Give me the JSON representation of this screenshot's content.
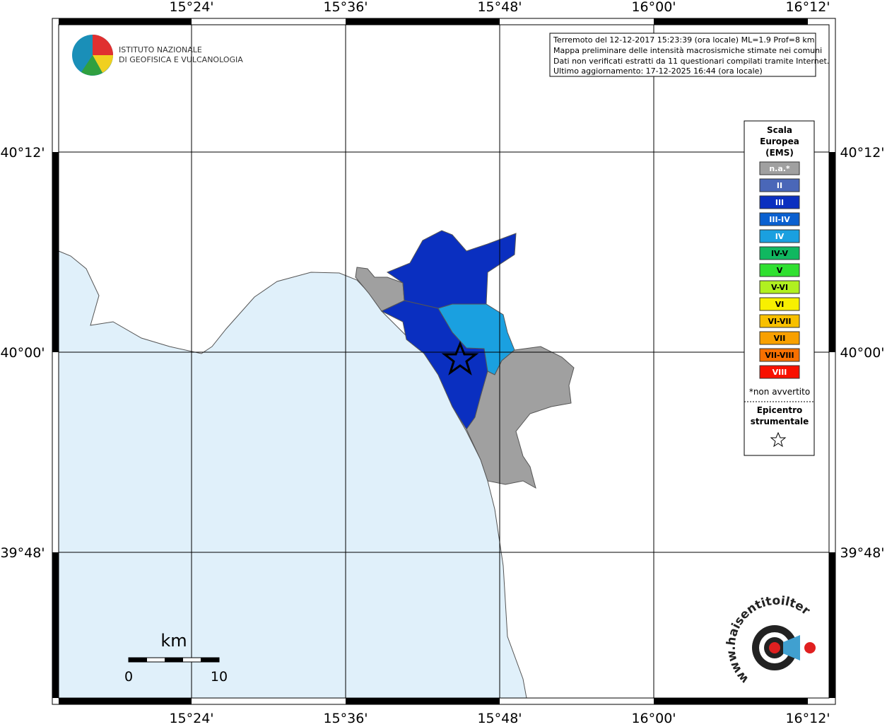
{
  "lon_labels": [
    "15°24'",
    "15°36'",
    "15°48'",
    "16°00'",
    "16°12'"
  ],
  "lat_labels": [
    "40°12'",
    "40°00'",
    "39°48'"
  ],
  "logo": {
    "line1": "ISTITUTO NAZIONALE",
    "line2": "DI GEOFISICA E VULCANOLOGIA"
  },
  "info": [
    "Terremoto del 12-12-2017 15:23:39 (ora locale) ML=1.9 Prof=8 km",
    "Mappa preliminare delle intensità macrosismiche stimate nei comuni",
    "Dati non verificati estratti da 11 questionari compilati tramite Internet.",
    "Ultimo aggiornamento: 17-12-2025 16:44 (ora locale)"
  ],
  "legend": {
    "title": [
      "Scala",
      "Europea",
      "(EMS)"
    ],
    "items": [
      {
        "label": "n.a.*",
        "color": "#a0a0a0",
        "text": "#ffffff"
      },
      {
        "label": "II",
        "color": "#4a67b8",
        "text": "#ffffff"
      },
      {
        "label": "III",
        "color": "#0a2fc0",
        "text": "#ffffff"
      },
      {
        "label": "III-IV",
        "color": "#0a60d0",
        "text": "#ffffff"
      },
      {
        "label": "IV",
        "color": "#1aa0e0",
        "text": "#ffffff"
      },
      {
        "label": "IV-V",
        "color": "#10b860",
        "text": "#000000"
      },
      {
        "label": "V",
        "color": "#30e030",
        "text": "#000000"
      },
      {
        "label": "V-VI",
        "color": "#b0f020",
        "text": "#000000"
      },
      {
        "label": "VI",
        "color": "#f8f000",
        "text": "#000000"
      },
      {
        "label": "VI-VII",
        "color": "#f8c000",
        "text": "#000000"
      },
      {
        "label": "VII",
        "color": "#f8a000",
        "text": "#000000"
      },
      {
        "label": "VII-VIII",
        "color": "#f87000",
        "text": "#000000"
      },
      {
        "label": "VIII",
        "color": "#f81000",
        "text": "#ffffff"
      }
    ],
    "note": "*non avvertito",
    "epicenter": [
      "Epicentro",
      "strumentale"
    ]
  },
  "scale": {
    "unit": "km",
    "start": "0",
    "end": "10"
  },
  "website": "www.haisentitoilterremoto.it"
}
